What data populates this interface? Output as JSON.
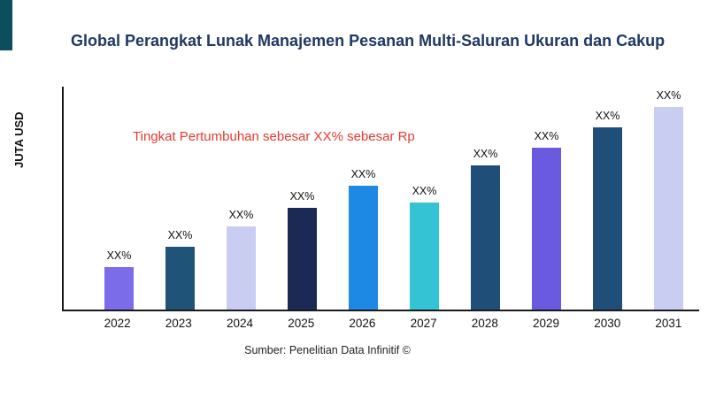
{
  "page": {
    "source": "Sumber: Penelitian Data Infinitif ©"
  },
  "colors": {
    "title": "#1f3864",
    "annotation": "#e8392e",
    "accent_stripe": "#0b4f5c",
    "axis": "#1a1a1a"
  },
  "chart_data": {
    "type": "bar",
    "title": "Global Perangkat Lunak Manajemen Pesanan Multi-Saluran Ukuran dan Cakup",
    "ylabel": "JUTA USD",
    "xlabel": "",
    "categories": [
      "2022",
      "2023",
      "2024",
      "2025",
      "2026",
      "2027",
      "2028",
      "2029",
      "2030",
      "2031"
    ],
    "values": [
      21,
      31,
      41,
      50,
      61,
      53,
      71,
      80,
      90,
      100
    ],
    "bar_labels": [
      "XX%",
      "XX%",
      "XX%",
      "XX%",
      "XX%",
      "XX%",
      "XX%",
      "XX%",
      "XX%",
      "XX%"
    ],
    "bar_colors": [
      "#7b6cea",
      "#1f5377",
      "#c9cdf1",
      "#1b2a55",
      "#1e88e5",
      "#33c3d4",
      "#1f4e79",
      "#6a5ae0",
      "#1f4e79",
      "#c9cdf1"
    ],
    "ylim": [
      0,
      110
    ],
    "grid": false,
    "legend": false,
    "annotation": "Tingkat Pertumbuhan sebesar XX% sebesar Rp"
  }
}
